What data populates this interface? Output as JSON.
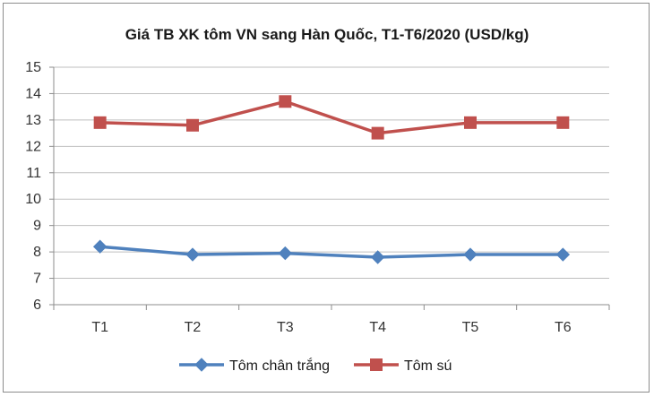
{
  "chart_data": {
    "type": "line",
    "title": "Giá TB XK tôm VN sang Hàn Quốc, T1-T6/2020 (USD/kg)",
    "xlabel": "",
    "ylabel": "",
    "categories": [
      "T1",
      "T2",
      "T3",
      "T4",
      "T5",
      "T6"
    ],
    "ylim": [
      6,
      15
    ],
    "yticks": [
      "6",
      "7",
      "8",
      "9",
      "10",
      "11",
      "12",
      "13",
      "14",
      "15"
    ],
    "grid": true,
    "legend": "bottom",
    "series": [
      {
        "name": "Tôm chân trắng",
        "values": [
          8.2,
          7.9,
          7.95,
          7.8,
          7.9,
          7.9
        ],
        "color": "#4f81bd",
        "marker": "diamond"
      },
      {
        "name": "Tôm sú",
        "values": [
          12.9,
          12.8,
          13.7,
          12.5,
          12.9,
          12.9
        ],
        "color": "#c0504d",
        "marker": "square"
      }
    ]
  }
}
